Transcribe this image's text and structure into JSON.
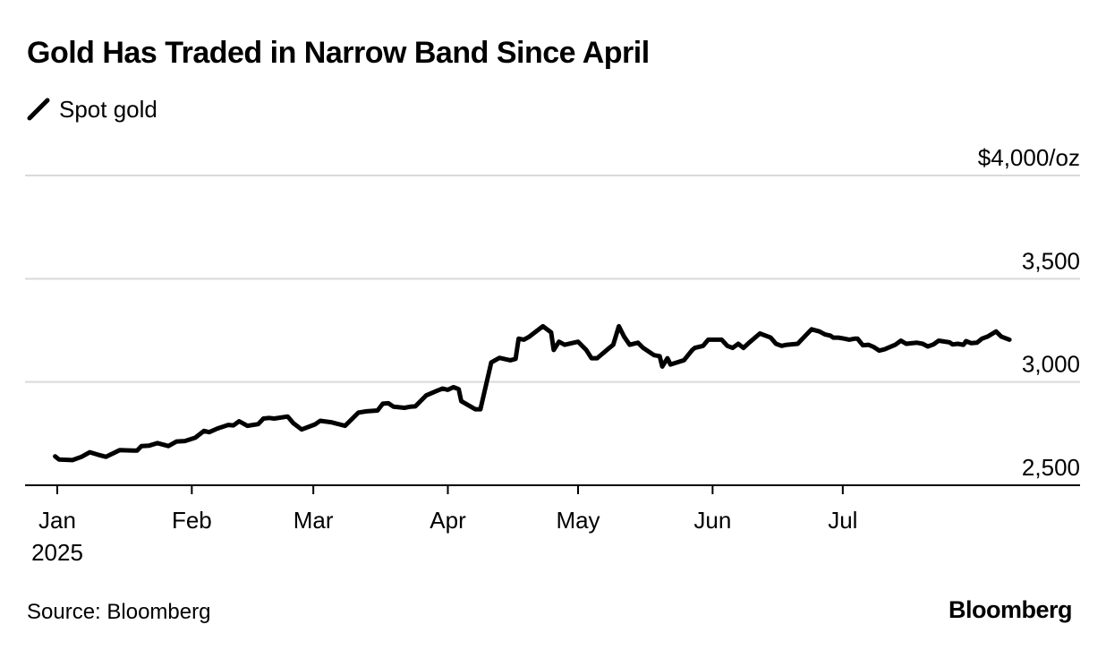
{
  "chart_data": {
    "type": "line",
    "title": "Gold Has Traded in Narrow Band Since April",
    "legend": [
      {
        "name": "Spot gold",
        "color": "#000000"
      }
    ],
    "y_unit_label": "$4,000/oz",
    "ylim": [
      2500,
      4000
    ],
    "y_ticks": [
      {
        "value": 4000,
        "label": "$4,000/oz"
      },
      {
        "value": 3500,
        "label": "3,500"
      },
      {
        "value": 3000,
        "label": "3,000"
      },
      {
        "value": 2500,
        "label": "2,500"
      }
    ],
    "x_range_days": [
      0,
      220
    ],
    "x_ticks": [
      {
        "day": 0,
        "label": "Jan",
        "sublabel": "2025"
      },
      {
        "day": 31,
        "label": "Feb"
      },
      {
        "day": 59,
        "label": "Mar"
      },
      {
        "day": 90,
        "label": "Apr"
      },
      {
        "day": 120,
        "label": "May"
      },
      {
        "day": 151,
        "label": "Jun"
      },
      {
        "day": 181,
        "label": "Jul"
      }
    ],
    "series": [
      {
        "name": "Spot gold",
        "color": "#000000",
        "points": [
          [
            -0.5,
            2640
          ],
          [
            0.4,
            2625
          ],
          [
            3.5,
            2622
          ],
          [
            5.6,
            2638
          ],
          [
            7.5,
            2660
          ],
          [
            9.4,
            2648
          ],
          [
            11.2,
            2638
          ],
          [
            14.4,
            2670
          ],
          [
            17.5,
            2668
          ],
          [
            18.4,
            2668
          ],
          [
            19.4,
            2690
          ],
          [
            21.2,
            2692
          ],
          [
            23.1,
            2704
          ],
          [
            25.6,
            2690
          ],
          [
            27.5,
            2712
          ],
          [
            29.4,
            2714
          ],
          [
            31.8,
            2730
          ],
          [
            33.8,
            2763
          ],
          [
            35.0,
            2757
          ],
          [
            36.9,
            2775
          ],
          [
            39.4,
            2792
          ],
          [
            40.6,
            2790
          ],
          [
            41.9,
            2810
          ],
          [
            43.8,
            2788
          ],
          [
            46.3,
            2796
          ],
          [
            47.5,
            2823
          ],
          [
            48.8,
            2826
          ],
          [
            50.0,
            2823
          ],
          [
            53.1,
            2833
          ],
          [
            54.4,
            2801
          ],
          [
            56.3,
            2770
          ],
          [
            59.4,
            2795
          ],
          [
            60.6,
            2812
          ],
          [
            63.1,
            2805
          ],
          [
            66.3,
            2788
          ],
          [
            69.4,
            2852
          ],
          [
            71.3,
            2858
          ],
          [
            73.8,
            2862
          ],
          [
            75.0,
            2895
          ],
          [
            76.3,
            2897
          ],
          [
            77.5,
            2880
          ],
          [
            80.0,
            2875
          ],
          [
            81.3,
            2880
          ],
          [
            82.5,
            2882
          ],
          [
            85.0,
            2935
          ],
          [
            87.5,
            2958
          ],
          [
            88.8,
            2968
          ],
          [
            90.0,
            2962
          ],
          [
            91.3,
            2975
          ],
          [
            92.5,
            2965
          ],
          [
            93.1,
            2907
          ],
          [
            96.3,
            2868
          ],
          [
            97.5,
            2868
          ],
          [
            100.0,
            3095
          ],
          [
            101.9,
            3117
          ],
          [
            104.4,
            3105
          ],
          [
            105.6,
            3112
          ],
          [
            106.3,
            3210
          ],
          [
            107.5,
            3205
          ],
          [
            108.8,
            3220
          ],
          [
            111.9,
            3270
          ],
          [
            113.8,
            3240
          ],
          [
            114.4,
            3155
          ],
          [
            115.6,
            3195
          ],
          [
            116.9,
            3180
          ],
          [
            120.0,
            3195
          ],
          [
            121.9,
            3155
          ],
          [
            123.1,
            3115
          ],
          [
            124.4,
            3115
          ],
          [
            126.9,
            3160
          ],
          [
            128.1,
            3180
          ],
          [
            129.4,
            3270
          ],
          [
            130.6,
            3220
          ],
          [
            131.9,
            3180
          ],
          [
            133.8,
            3190
          ],
          [
            135.0,
            3165
          ],
          [
            137.5,
            3130
          ],
          [
            138.8,
            3125
          ],
          [
            139.4,
            3075
          ],
          [
            140.6,
            3115
          ],
          [
            141.3,
            3085
          ],
          [
            144.4,
            3105
          ],
          [
            146.3,
            3155
          ],
          [
            146.9,
            3165
          ],
          [
            148.8,
            3175
          ],
          [
            150.0,
            3205
          ],
          [
            153.1,
            3205
          ],
          [
            154.4,
            3175
          ],
          [
            155.6,
            3165
          ],
          [
            156.9,
            3185
          ],
          [
            158.1,
            3165
          ],
          [
            159.4,
            3190
          ],
          [
            161.9,
            3235
          ],
          [
            164.4,
            3215
          ],
          [
            165.6,
            3185
          ],
          [
            166.9,
            3175
          ],
          [
            168.1,
            3180
          ],
          [
            170.6,
            3185
          ],
          [
            173.8,
            3255
          ],
          [
            175.6,
            3245
          ],
          [
            176.9,
            3230
          ],
          [
            178.1,
            3225
          ],
          [
            178.8,
            3215
          ],
          [
            180.0,
            3215
          ],
          [
            181.3,
            3210
          ],
          [
            182.5,
            3205
          ],
          [
            183.8,
            3210
          ],
          [
            184.4,
            3210
          ],
          [
            185.6,
            3178
          ],
          [
            186.9,
            3180
          ],
          [
            188.1,
            3170
          ],
          [
            189.4,
            3152
          ],
          [
            190.6,
            3158
          ],
          [
            193.1,
            3180
          ],
          [
            194.4,
            3200
          ],
          [
            195.6,
            3185
          ],
          [
            198.1,
            3190
          ],
          [
            199.4,
            3185
          ],
          [
            200.6,
            3172
          ],
          [
            201.9,
            3182
          ],
          [
            203.1,
            3200
          ],
          [
            205.6,
            3192
          ],
          [
            206.3,
            3182
          ],
          [
            207.5,
            3185
          ],
          [
            208.8,
            3180
          ],
          [
            209.4,
            3198
          ],
          [
            210.6,
            3188
          ],
          [
            211.9,
            3190
          ],
          [
            213.1,
            3210
          ],
          [
            214.4,
            3220
          ],
          [
            216.3,
            3245
          ],
          [
            217.5,
            3220
          ],
          [
            219.4,
            3205
          ]
        ]
      }
    ]
  },
  "footer": {
    "source": "Source: Bloomberg",
    "brand": "Bloomberg"
  }
}
